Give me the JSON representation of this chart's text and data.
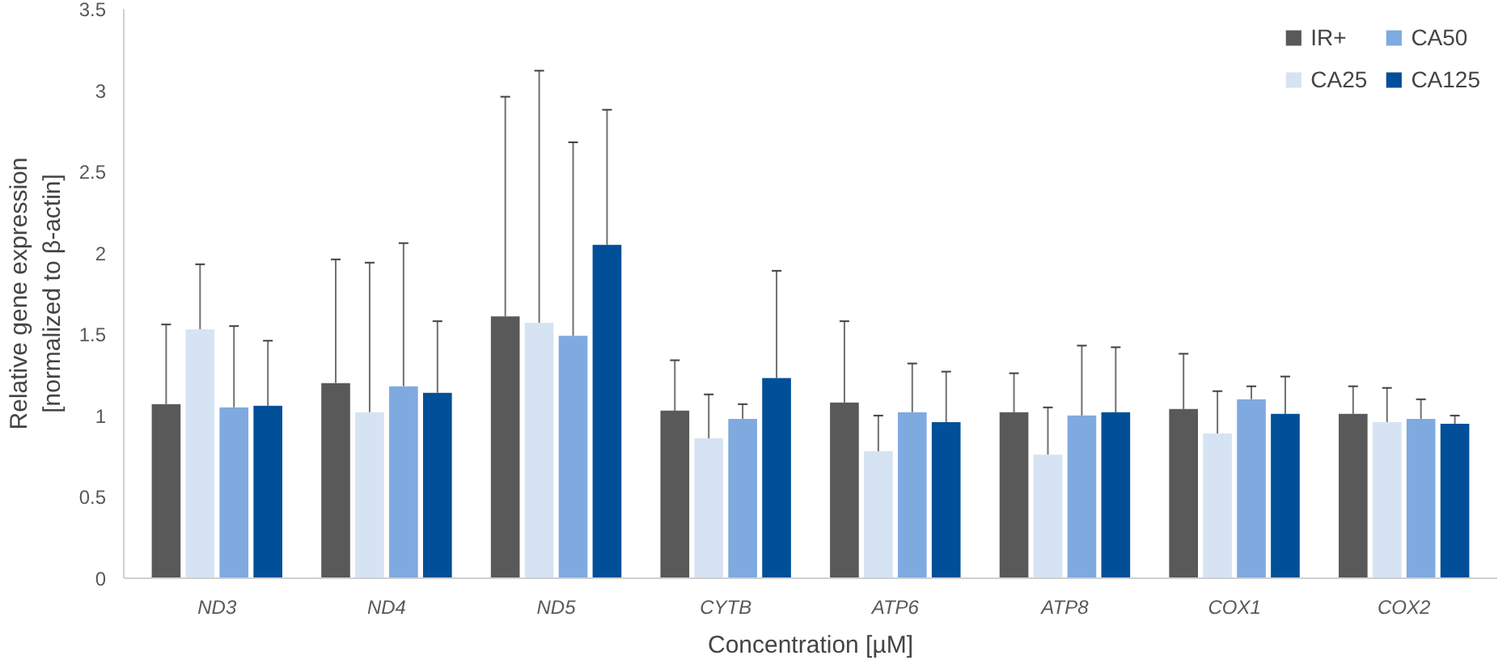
{
  "chart_data": {
    "type": "bar",
    "xlabel": "Concentration [µM]",
    "ylabel": "Relative gene expression\n[normalized to β-actin]",
    "categories": [
      "ND3",
      "ND4",
      "ND5",
      "CYTB",
      "ATP6",
      "ATP8",
      "COX1",
      "COX2"
    ],
    "series": [
      {
        "name": "IR+",
        "color": "#595959",
        "values": [
          1.07,
          1.2,
          1.61,
          1.03,
          1.08,
          1.02,
          1.04,
          1.01
        ],
        "errors": [
          [
            1.07,
            1.56
          ],
          [
            1.2,
            1.96
          ],
          [
            1.61,
            2.96
          ],
          [
            1.03,
            1.34
          ],
          [
            1.08,
            1.58
          ],
          [
            1.02,
            1.26
          ],
          [
            1.04,
            1.38
          ],
          [
            1.01,
            1.18
          ]
        ]
      },
      {
        "name": "CA25",
        "color": "#d6e3f3",
        "values": [
          1.53,
          1.02,
          1.57,
          0.86,
          0.78,
          0.76,
          0.89,
          0.96
        ],
        "errors": [
          [
            1.53,
            1.93
          ],
          [
            1.02,
            1.94
          ],
          [
            1.57,
            3.12
          ],
          [
            0.86,
            1.13
          ],
          [
            0.78,
            1.0
          ],
          [
            0.76,
            1.05
          ],
          [
            0.89,
            1.15
          ],
          [
            0.96,
            1.17
          ]
        ]
      },
      {
        "name": "CA50",
        "color": "#7eaadf",
        "values": [
          1.05,
          1.18,
          1.49,
          0.98,
          1.02,
          1.0,
          1.1,
          0.98
        ],
        "errors": [
          [
            1.05,
            1.55
          ],
          [
            1.18,
            2.06
          ],
          [
            1.49,
            2.68
          ],
          [
            0.98,
            1.07
          ],
          [
            1.02,
            1.32
          ],
          [
            1.0,
            1.43
          ],
          [
            1.1,
            1.18
          ],
          [
            0.98,
            1.1
          ]
        ]
      },
      {
        "name": "CA125",
        "color": "#004f98",
        "values": [
          1.06,
          1.14,
          2.05,
          1.23,
          0.96,
          1.02,
          1.01,
          0.95
        ],
        "errors": [
          [
            1.06,
            1.46
          ],
          [
            1.14,
            1.58
          ],
          [
            2.05,
            2.88
          ],
          [
            1.23,
            1.89
          ],
          [
            0.96,
            1.27
          ],
          [
            1.02,
            1.42
          ],
          [
            1.01,
            1.24
          ],
          [
            0.95,
            1.0
          ]
        ]
      }
    ],
    "ylim": [
      0,
      3.5
    ],
    "yticks": [
      0,
      0.5,
      1,
      1.5,
      2,
      2.5,
      3,
      3.5
    ],
    "grid": false,
    "legend": "top right"
  }
}
